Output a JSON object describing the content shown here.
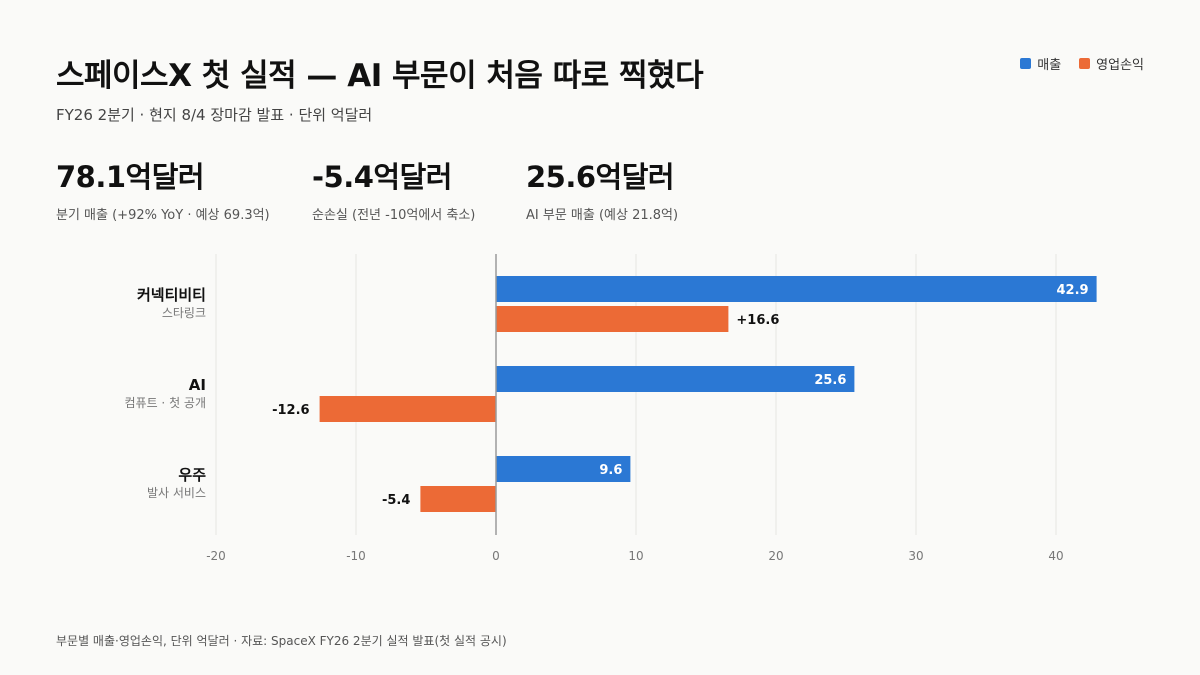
{
  "header": {
    "title": "스페이스X 첫 실적 — AI 부문이 처음 따로 찍혔다",
    "subtitle": "FY26 2분기 · 현지 8/4 장마감 발표 · 단위 억달러"
  },
  "legend": {
    "items": [
      {
        "label": "매출",
        "color": "#2b78d4"
      },
      {
        "label": "영업손익",
        "color": "#ec6a36"
      }
    ]
  },
  "kpis": [
    {
      "value": "78.1억달러",
      "label": "분기 매출 (+92% YoY · 예상 69.3억)"
    },
    {
      "value": "-5.4억달러",
      "label": "순손실 (전년 -10억에서 축소)"
    },
    {
      "value": "25.6억달러",
      "label": "AI 부문 매출 (예상 21.8억)"
    }
  ],
  "chart_data": {
    "type": "bar",
    "orientation": "horizontal",
    "categories": [
      {
        "name": "커넥티비티",
        "sub": "스타링크"
      },
      {
        "name": "AI",
        "sub": "컴퓨트 · 첫 공개"
      },
      {
        "name": "우주",
        "sub": "발사 서비스"
      }
    ],
    "series": [
      {
        "name": "매출",
        "color": "#2b78d4",
        "values": [
          42.9,
          25.6,
          9.6
        ],
        "labels": [
          "42.9",
          "25.6",
          "9.6"
        ]
      },
      {
        "name": "영업손익",
        "color": "#ec6a36",
        "values": [
          16.6,
          -12.6,
          -5.4
        ],
        "labels": [
          "+16.6",
          "-12.6",
          "-5.4"
        ]
      }
    ],
    "xlim": [
      -20,
      40
    ],
    "xticks": [
      -20,
      -10,
      0,
      10,
      20,
      30,
      40
    ],
    "grid": true,
    "legend_position": "top-right"
  },
  "footer": {
    "note": "부문별 매출·영업손익, 단위 억달러 · 자료: SpaceX FY26 2분기 실적 발표(첫 실적 공시)"
  }
}
